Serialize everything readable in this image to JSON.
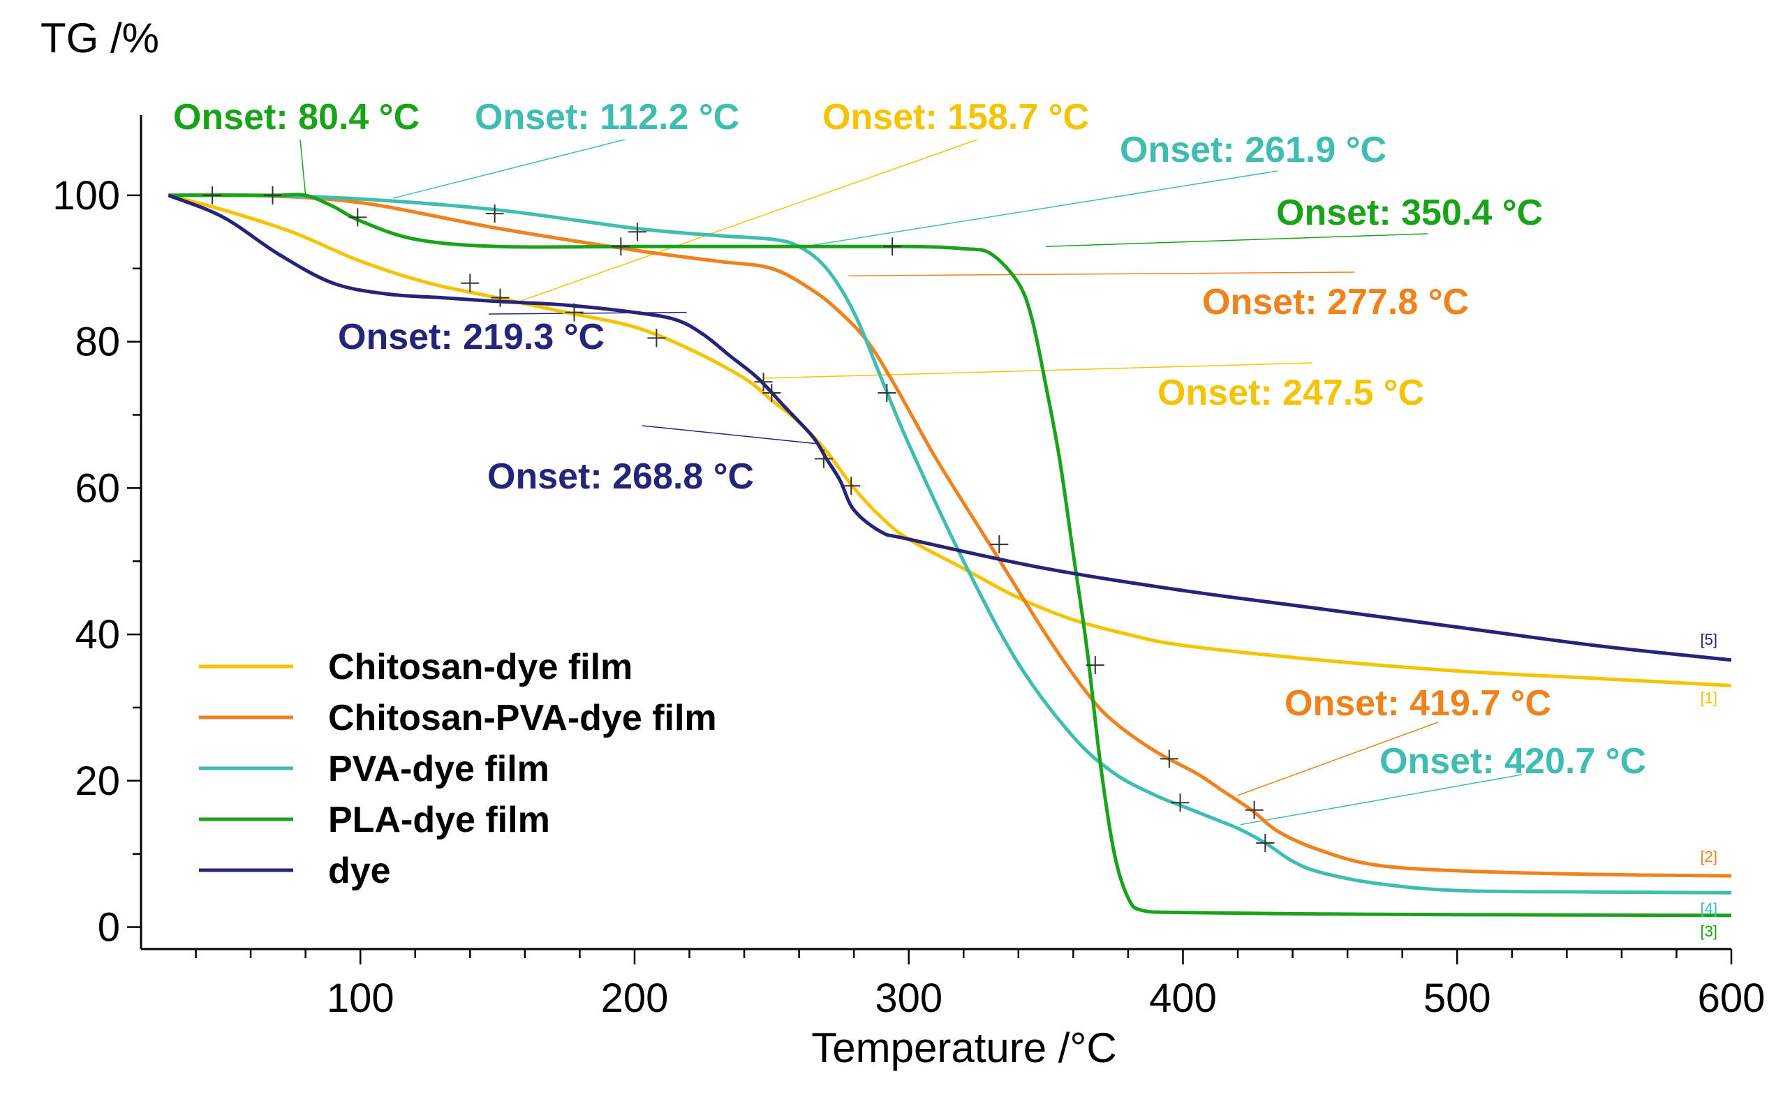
{
  "chart_data": {
    "type": "line",
    "ylabel": "TG /%",
    "xlabel": "Temperature /°C",
    "xlim": [
      20,
      600
    ],
    "ylim": [
      -3,
      110
    ],
    "xticks": [
      100,
      200,
      300,
      400,
      500,
      600
    ],
    "yticks": [
      0,
      20,
      40,
      60,
      80,
      100
    ],
    "xtick_labels": [
      "100",
      "200",
      "300",
      "400",
      "500",
      "600"
    ],
    "ytick_labels": [
      "0",
      "20",
      "40",
      "60",
      "80",
      "100"
    ],
    "legend_position": "bottom-left",
    "series": [
      {
        "name": "Chitosan-dye film",
        "end_tag": "[1]",
        "color": "#f5c400",
        "x": [
          30,
          50,
          75,
          100,
          125,
          150,
          175,
          200,
          220,
          240,
          250,
          260,
          270,
          280,
          290,
          300,
          320,
          340,
          360,
          380,
          400,
          450,
          500,
          550,
          600
        ],
        "y": [
          100,
          98,
          95,
          91,
          88,
          86,
          84,
          82,
          79,
          75,
          72,
          69,
          65,
          60,
          56,
          53,
          49,
          45,
          42,
          40,
          38.5,
          36.5,
          35,
          34,
          33
        ]
      },
      {
        "name": "Chitosan-PVA-dye film",
        "end_tag": "[2]",
        "color": "#f0821e",
        "x": [
          30,
          60,
          100,
          150,
          200,
          230,
          250,
          265,
          275,
          285,
          295,
          310,
          330,
          350,
          365,
          375,
          390,
          405,
          415,
          425,
          435,
          450,
          470,
          500,
          550,
          600
        ],
        "y": [
          100,
          100,
          99,
          95.5,
          92.5,
          91,
          90,
          87,
          84,
          80,
          74,
          64,
          52,
          40,
          32,
          28,
          24,
          21,
          18.5,
          16,
          13,
          10.5,
          8.5,
          7.7,
          7.2,
          7
        ]
      },
      {
        "name": "PVA-dye film",
        "end_tag": "[4]",
        "color": "#3fbdb1",
        "x": [
          30,
          60,
          100,
          150,
          200,
          230,
          250,
          260,
          270,
          280,
          290,
          300,
          320,
          340,
          360,
          375,
          390,
          400,
          410,
          420,
          430,
          440,
          450,
          470,
          500,
          550,
          600
        ],
        "y": [
          100,
          100,
          99.5,
          98,
          95.5,
          94.5,
          94,
          93,
          90,
          84,
          75,
          66,
          50,
          36,
          26,
          21,
          18,
          16.5,
          15,
          13.5,
          11.5,
          9,
          7.5,
          6,
          5,
          4.8,
          4.7
        ]
      },
      {
        "name": "PLA-dye film",
        "end_tag": "[3]",
        "color": "#1aa31a",
        "x": [
          30,
          50,
          70,
          80,
          90,
          100,
          120,
          150,
          200,
          250,
          300,
          320,
          330,
          340,
          345,
          350,
          355,
          360,
          365,
          370,
          375,
          380,
          385,
          400,
          450,
          500,
          600
        ],
        "y": [
          100,
          100,
          100,
          100,
          98.5,
          96.5,
          94,
          93,
          93,
          93,
          93,
          92.7,
          92,
          88,
          83,
          74,
          64,
          51,
          38,
          22,
          10,
          4,
          2.3,
          2,
          1.8,
          1.7,
          1.6
        ]
      },
      {
        "name": "dye",
        "end_tag": "[5]",
        "color": "#24247a",
        "x": [
          30,
          50,
          70,
          90,
          110,
          130,
          150,
          175,
          200,
          215,
          225,
          235,
          245,
          255,
          265,
          270,
          275,
          280,
          290,
          300,
          350,
          400,
          450,
          500,
          550,
          600
        ],
        "y": [
          100,
          97,
          92,
          88,
          86.5,
          86,
          85.5,
          85,
          84,
          83,
          81,
          78,
          75,
          71,
          67,
          64,
          61,
          57,
          54,
          53,
          49,
          46,
          43.5,
          41,
          38.5,
          36.5
        ]
      }
    ],
    "onset_annotations": [
      {
        "label": "Onset: 80.4 °C",
        "series": 3,
        "anchor": [
          80,
          100
        ],
        "color": "#1aa31a"
      },
      {
        "label": "Onset: 112.2 °C",
        "series": 2,
        "anchor": [
          112,
          99.6
        ],
        "color": "#3fbdb1"
      },
      {
        "label": "Onset: 158.7 °C",
        "series": 0,
        "anchor": [
          158,
          85.5
        ],
        "color": "#f5c400"
      },
      {
        "label": "Onset: 261.9 °C",
        "series": 2,
        "anchor": [
          262,
          93
        ],
        "color": "#3fbdb1"
      },
      {
        "label": "Onset: 350.4 °C",
        "series": 3,
        "anchor": [
          350,
          93
        ],
        "color": "#1aa31a"
      },
      {
        "label": "Onset: 277.8 °C",
        "series": 1,
        "anchor": [
          278,
          89
        ],
        "color": "#f0821e"
      },
      {
        "label": "Onset: 219.3 °C",
        "series": 4,
        "anchor": [
          219,
          84
        ],
        "color": "#24247a"
      },
      {
        "label": "Onset: 247.5 °C",
        "series": 0,
        "anchor": [
          247,
          75
        ],
        "color": "#f5c400"
      },
      {
        "label": "Onset: 268.8 °C",
        "series": 4,
        "anchor": [
          268,
          66
        ],
        "color": "#24247a"
      },
      {
        "label": "Onset: 419.7 °C",
        "series": 1,
        "anchor": [
          420,
          18
        ],
        "color": "#f0821e"
      },
      {
        "label": "Onset: 420.7 °C",
        "series": 2,
        "anchor": [
          421,
          14
        ],
        "color": "#3fbdb1"
      }
    ],
    "cross_markers": [
      [
        46,
        100
      ],
      [
        68,
        100
      ],
      [
        99,
        97
      ],
      [
        149,
        97.5
      ],
      [
        195,
        93
      ],
      [
        201,
        95
      ],
      [
        294,
        93
      ],
      [
        140,
        88
      ],
      [
        151,
        86
      ],
      [
        178,
        84
      ],
      [
        208,
        80.5
      ],
      [
        247,
        74.5
      ],
      [
        250,
        73
      ],
      [
        292,
        73
      ],
      [
        269,
        64
      ],
      [
        279,
        60.3
      ],
      [
        333,
        52.3
      ],
      [
        368,
        35.8
      ],
      [
        395,
        23
      ],
      [
        399,
        17
      ],
      [
        426,
        16
      ],
      [
        430,
        11.5
      ]
    ]
  }
}
